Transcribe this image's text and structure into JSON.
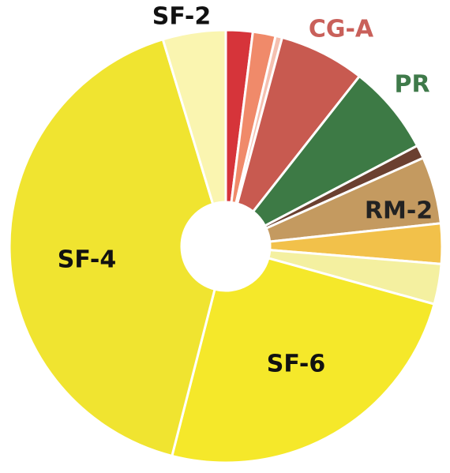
{
  "chart_data": {
    "type": "donut",
    "categories": [
      null,
      null,
      null,
      "CG-A",
      "PR",
      null,
      "RM-2",
      null,
      null,
      "SF-6",
      "SF-4",
      "SF-2"
    ],
    "values": [
      2,
      1.7,
      0.5,
      6.4,
      6.7,
      1,
      5,
      3,
      3,
      24.7,
      41.3,
      4.7
    ],
    "colors": [
      "#d6343a",
      "#f08a6a",
      "#f5c0b0",
      "#c85a50",
      "#3d7a45",
      "#6b4030",
      "#c49a60",
      "#f2c14a",
      "#f4f0a0",
      "#f5e82a",
      "#f0e430",
      "#faf5b0"
    ]
  }
}
